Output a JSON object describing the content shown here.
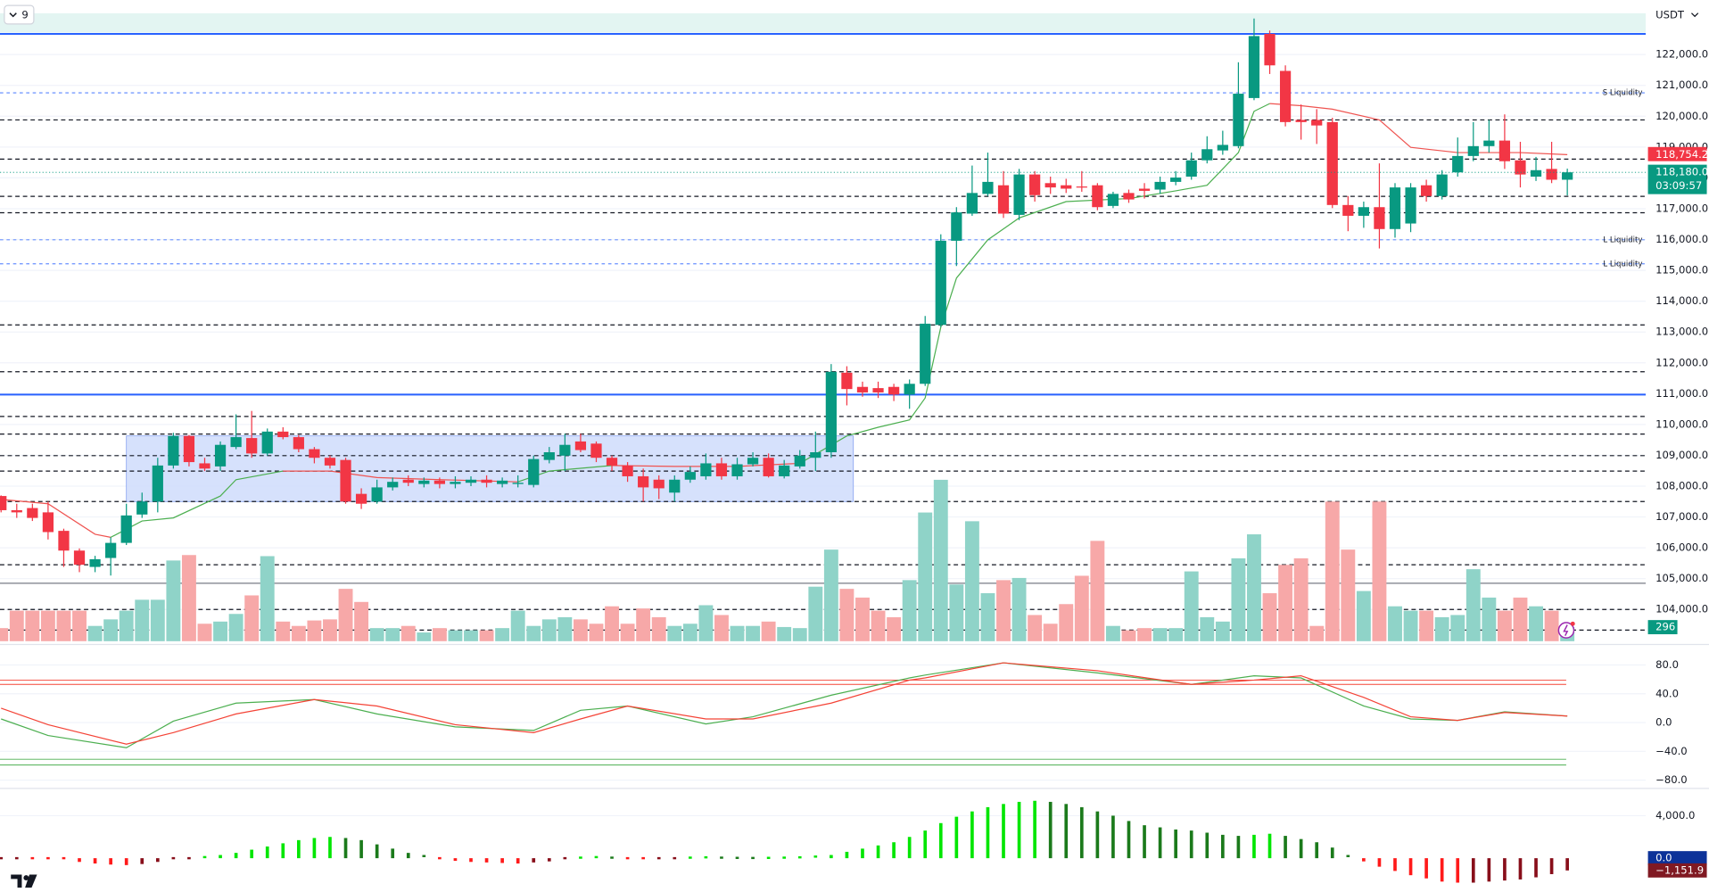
{
  "chart_data": {
    "type": "candlestick",
    "currency": "USDT",
    "interval": "9",
    "grid": true,
    "ylim": [
      102900,
      123770
    ],
    "yticks": [
      {
        "value": 122000,
        "label": "122,000.0"
      },
      {
        "value": 121000,
        "label": "121,000.0"
      },
      {
        "value": 120000,
        "label": "120,000.0"
      },
      {
        "value": 119000,
        "label": "119,000.0"
      },
      {
        "value": 118000,
        "label": "118,000.0"
      },
      {
        "value": 117000,
        "label": "117,000.0"
      },
      {
        "value": 116000,
        "label": "116,000.0"
      },
      {
        "value": 115000,
        "label": "115,000.0"
      },
      {
        "value": 114000,
        "label": "114,000.0"
      },
      {
        "value": 113000,
        "label": "113,000.0"
      },
      {
        "value": 112000,
        "label": "112,000.0"
      },
      {
        "value": 111000,
        "label": "111,000.0"
      },
      {
        "value": 110000,
        "label": "110,000.0"
      },
      {
        "value": 109000,
        "label": "109,000.0"
      },
      {
        "value": 108000,
        "label": "108,000.0"
      },
      {
        "value": 107000,
        "label": "107,000.0"
      },
      {
        "value": 106000,
        "label": "106,000.0"
      },
      {
        "value": 105000,
        "label": "105,000.0"
      },
      {
        "value": 104000,
        "label": "104,000.0"
      }
    ],
    "colors": {
      "up": "#089981",
      "down": "#f23645",
      "up_volume": "#8fd3c8",
      "down_volume": "#f7a8a8"
    },
    "candles": {
      "open": [
        107680,
        107220,
        107290,
        107150,
        106550,
        105910,
        105380,
        105670,
        106160,
        107080,
        107500,
        108670,
        109630,
        108740,
        108640,
        109270,
        109560,
        109060,
        109770,
        109590,
        109200,
        108920,
        108850,
        107750,
        107500,
        107960,
        108210,
        108070,
        108180,
        108070,
        108110,
        108210,
        108070,
        108070,
        108040,
        108850,
        108990,
        109450,
        109380,
        108920,
        108670,
        108320,
        108210,
        107790,
        108210,
        108320,
        108740,
        108320,
        108710,
        108920,
        108320,
        108640,
        108920,
        109100,
        111680,
        111220,
        111180,
        111220,
        110970,
        111320,
        113230,
        115960,
        116840,
        117480,
        117760,
        116800,
        118110,
        117830,
        117760,
        117720,
        117760,
        117090,
        117510,
        117650,
        117620,
        117870,
        118040,
        118570,
        118890,
        119030,
        120590,
        122670,
        121470,
        119880,
        119880,
        119810,
        117120,
        116770,
        117050,
        116340,
        116520,
        117760,
        117410,
        118180,
        118710,
        119030,
        119210,
        118570,
        118040,
        118290,
        117940
      ],
      "high": [
        107700,
        107430,
        107430,
        107500,
        106620,
        105980,
        105740,
        106340,
        107430,
        107790,
        108920,
        109730,
        109660,
        108920,
        109450,
        110330,
        110440,
        109870,
        109910,
        109660,
        109270,
        108990,
        108920,
        107930,
        108210,
        108280,
        108350,
        108280,
        108280,
        108320,
        108320,
        108350,
        108280,
        108350,
        108990,
        109270,
        109700,
        109700,
        109450,
        108990,
        108780,
        108570,
        108350,
        108350,
        108640,
        109060,
        108920,
        108920,
        109100,
        109060,
        108850,
        109170,
        109770,
        111960,
        111890,
        111390,
        111390,
        111320,
        111460,
        113520,
        116170,
        117050,
        118400,
        118820,
        118220,
        118290,
        118220,
        118040,
        117970,
        118220,
        117830,
        117550,
        117620,
        117830,
        118040,
        118220,
        118820,
        119350,
        119530,
        121750,
        123170,
        122780,
        121650,
        120380,
        120230,
        119950,
        117410,
        117230,
        118470,
        117830,
        117830,
        117940,
        118250,
        119310,
        119810,
        119880,
        120060,
        119170,
        118680,
        119170,
        118300
      ],
      "low": [
        107150,
        106970,
        106870,
        106270,
        105380,
        105210,
        105210,
        105100,
        106090,
        106970,
        107150,
        108570,
        108640,
        108490,
        108490,
        109200,
        108920,
        108990,
        109520,
        109100,
        108740,
        108570,
        107430,
        107260,
        107430,
        107860,
        108000,
        107960,
        107930,
        107930,
        108000,
        107960,
        107960,
        107960,
        107960,
        108740,
        108490,
        109100,
        108780,
        108490,
        108140,
        107500,
        107580,
        107500,
        108110,
        108210,
        108210,
        108210,
        108640,
        108280,
        108250,
        108570,
        108490,
        108920,
        110620,
        110900,
        110860,
        110760,
        110510,
        111250,
        113160,
        115140,
        116770,
        117410,
        116700,
        116630,
        117230,
        117480,
        117510,
        117550,
        116950,
        117020,
        117190,
        117330,
        117480,
        117760,
        117940,
        118470,
        118750,
        118960,
        120520,
        121370,
        119670,
        119240,
        119100,
        117020,
        116270,
        116380,
        115710,
        116060,
        116240,
        117230,
        117300,
        118040,
        118540,
        118820,
        118290,
        117690,
        117900,
        117830,
        117430
      ],
      "close": [
        107220,
        107150,
        106970,
        106510,
        105910,
        105450,
        105630,
        106160,
        107050,
        107500,
        108670,
        109630,
        108780,
        108570,
        109340,
        109590,
        109060,
        109770,
        109590,
        109200,
        108920,
        108670,
        107500,
        107430,
        107960,
        108140,
        108110,
        108180,
        108070,
        108140,
        108210,
        108110,
        108180,
        108110,
        108880,
        109100,
        109340,
        109170,
        108920,
        108670,
        108320,
        107960,
        107930,
        108210,
        108460,
        108740,
        108320,
        108710,
        108920,
        108320,
        108670,
        108990,
        109100,
        111710,
        111150,
        111040,
        111040,
        110970,
        111320,
        113270,
        115960,
        116880,
        117510,
        117870,
        116840,
        118110,
        117440,
        117690,
        117650,
        117690,
        117050,
        117480,
        117300,
        117580,
        117870,
        118010,
        118570,
        118930,
        119070,
        120730,
        122600,
        121650,
        119810,
        119810,
        119700,
        117120,
        116770,
        117050,
        116340,
        117690,
        117690,
        117410,
        118110,
        118710,
        119030,
        119210,
        118540,
        118110,
        118250,
        117940,
        118180
      ],
      "volume": [
        276,
        644,
        644,
        644,
        644,
        644,
        322,
        460,
        644,
        874,
        874,
        1702,
        1817,
        368,
        414,
        575,
        966,
        1794,
        414,
        322,
        437,
        460,
        1104,
        828,
        276,
        276,
        322,
        184,
        276,
        230,
        230,
        230,
        276,
        644,
        322,
        460,
        506,
        460,
        368,
        736,
        368,
        690,
        506,
        322,
        368,
        759,
        552,
        322,
        322,
        414,
        299,
        276,
        1150,
        1932,
        1104,
        920,
        644,
        506,
        1288,
        2714,
        3404,
        1196,
        2530,
        1012,
        1288,
        1334,
        552,
        368,
        782,
        1380,
        2116,
        322,
        230,
        276,
        276,
        276,
        1472,
        506,
        414,
        1748,
        2254,
        1012,
        1610,
        1748,
        322,
        2944,
        1932,
        1058,
        2944,
        736,
        644,
        644,
        506,
        552,
        1518,
        920,
        644,
        920,
        736,
        644,
        296
      ]
    },
    "resistance_band": {
      "high": 123340,
      "low": 122710,
      "color": "#e3f5f2"
    },
    "zone": {
      "from_index": 8,
      "to_index": 54,
      "high": 109630,
      "low": 107500,
      "color": "#cfdcfb",
      "border": "#7d9cf0"
    },
    "levels": [
      {
        "value": 122670,
        "color": "#2962ff",
        "style": "solid"
      },
      {
        "value": 110970,
        "color": "#2962ff",
        "style": "solid"
      },
      {
        "value": 104850,
        "color": "#787b86",
        "style": "solid"
      },
      {
        "value": 119880,
        "color": "#131722",
        "style": "dashed"
      },
      {
        "value": 118610,
        "color": "#131722",
        "style": "dashed"
      },
      {
        "value": 117400,
        "color": "#131722",
        "style": "dashed"
      },
      {
        "value": 116870,
        "color": "#131722",
        "style": "dashed"
      },
      {
        "value": 113230,
        "color": "#131722",
        "style": "dashed"
      },
      {
        "value": 111710,
        "color": "#131722",
        "style": "dashed"
      },
      {
        "value": 110260,
        "color": "#131722",
        "style": "dashed"
      },
      {
        "value": 109690,
        "color": "#131722",
        "style": "dashed"
      },
      {
        "value": 108990,
        "color": "#131722",
        "style": "dashed"
      },
      {
        "value": 108490,
        "color": "#131722",
        "style": "dashed"
      },
      {
        "value": 107500,
        "color": "#131722",
        "style": "dashed"
      },
      {
        "value": 105450,
        "color": "#131722",
        "style": "dashed"
      },
      {
        "value": 104000,
        "color": "#131722",
        "style": "dashed"
      },
      {
        "value": 103330,
        "color": "#131722",
        "style": "dashed"
      }
    ],
    "liquidity": [
      {
        "value": 120760,
        "label": "S Liquidity"
      },
      {
        "value": 115990,
        "label": "L Liquidity"
      },
      {
        "value": 115210,
        "label": "L Liquidity"
      }
    ],
    "liquidity_color": "#2962ff",
    "ma": [
      {
        "color": "#ef5350",
        "x": [
          0,
          3,
          6,
          7
        ],
        "values": [
          107570,
          107430,
          106440,
          106340
        ]
      },
      {
        "color": "#4caf50",
        "x": [
          7,
          9,
          11,
          14,
          15,
          18
        ],
        "values": [
          106340,
          106870,
          106970,
          107680,
          108210,
          108490
        ]
      },
      {
        "color": "#ef5350",
        "x": [
          18,
          21,
          24,
          28,
          33
        ],
        "values": [
          108490,
          108490,
          108280,
          108210,
          108140
        ]
      },
      {
        "color": "#4caf50",
        "x": [
          33,
          35,
          39
        ],
        "values": [
          108140,
          108490,
          108670
        ]
      },
      {
        "color": "#ef5350",
        "x": [
          39,
          43,
          47,
          51
        ],
        "values": [
          108670,
          108640,
          108640,
          108740
        ]
      },
      {
        "color": "#4caf50",
        "x": [
          51,
          54,
          56,
          58,
          59,
          60,
          61,
          63,
          65,
          68,
          72,
          75,
          77,
          79,
          80,
          81
        ],
        "values": [
          108740,
          109630,
          109910,
          110150,
          110860,
          113160,
          114750,
          115990,
          116700,
          117230,
          117330,
          117580,
          117760,
          118820,
          120160,
          120410
        ]
      },
      {
        "color": "#ef5350",
        "x": [
          81,
          83,
          85,
          88,
          90,
          93,
          97,
          100
        ],
        "values": [
          120410,
          120340,
          120230,
          119880,
          118990,
          118820,
          118820,
          118754.2
        ]
      }
    ],
    "ma_label": {
      "value": 118754.2,
      "label": "118,754.2",
      "color": "#f23645"
    },
    "last_price": {
      "value": 118180,
      "label": "118,180.0",
      "countdown": "03:09:57",
      "color": "#089981"
    },
    "oscillator": {
      "ylim": [
        -90,
        107
      ],
      "yticks": [
        {
          "value": 80,
          "label": "80.0"
        },
        {
          "value": 40,
          "label": "40.0"
        },
        {
          "value": 0,
          "label": "0.0"
        },
        {
          "value": -40,
          "label": "−40.0"
        },
        {
          "value": -80,
          "label": "−80.0"
        }
      ],
      "levels": [
        {
          "value": 59,
          "color": "#f44336"
        },
        {
          "value": 53,
          "color": "#f44336"
        },
        {
          "value": -51,
          "color": "#4caf50"
        },
        {
          "value": -59,
          "color": "#4caf50"
        }
      ],
      "x": [
        0,
        3,
        8,
        11,
        15,
        20,
        24,
        29,
        34,
        37,
        40,
        45,
        48,
        53,
        58,
        59,
        64,
        70,
        76,
        80,
        83,
        87,
        90,
        93,
        96,
        100
      ],
      "series": [
        {
          "color": "#4caf50",
          "values": [
            5,
            -18,
            -35,
            2,
            27,
            32,
            12,
            -6,
            -11,
            17,
            23,
            -2,
            8,
            38,
            62,
            66,
            83,
            69,
            53,
            65,
            62,
            23,
            5,
            3,
            15,
            9
          ]
        },
        {
          "color": "#f44336",
          "values": [
            20,
            -3,
            -30,
            -14,
            12,
            32,
            23,
            -3,
            -14,
            5,
            23,
            5,
            5,
            27,
            59,
            62,
            83,
            72,
            53,
            59,
            65,
            35,
            8,
            3,
            14,
            9
          ]
        }
      ]
    },
    "macd": {
      "ylim": [
        -3180,
        6360
      ],
      "yticks": [
        {
          "value": 4000,
          "label": "4,000.0"
        }
      ],
      "colors": {
        "up_strong": "#00e600",
        "up_weak": "#1b7a1b",
        "down_strong": "#ff1a1a",
        "down_weak": "#880e1a"
      },
      "values": [
        -80,
        -80,
        -100,
        -150,
        -200,
        -350,
        -500,
        -600,
        -650,
        -550,
        -350,
        -200,
        -50,
        100,
        300,
        500,
        800,
        1100,
        1400,
        1700,
        1900,
        2000,
        1900,
        1700,
        1300,
        900,
        500,
        200,
        -100,
        -250,
        -350,
        -400,
        -450,
        -500,
        -400,
        -300,
        -100,
        50,
        100,
        50,
        -50,
        -100,
        -100,
        -50,
        50,
        80,
        50,
        30,
        20,
        30,
        50,
        80,
        150,
        300,
        600,
        900,
        1200,
        1500,
        2000,
        2600,
        3300,
        3900,
        4400,
        4800,
        5100,
        5300,
        5400,
        5300,
        5100,
        4800,
        4400,
        4000,
        3500,
        3100,
        2900,
        2700,
        2600,
        2400,
        2200,
        2100,
        2200,
        2300,
        2100,
        1800,
        1500,
        1000,
        200,
        -300,
        -800,
        -1200,
        -1600,
        -1900,
        -2200,
        -2300,
        -2300,
        -2200,
        -2100,
        -2000,
        -1800,
        -1500,
        -1151.9
      ],
      "markers": [
        {
          "value": 0,
          "label": "0.0",
          "color": "#0c3299"
        },
        {
          "value": -1151.9,
          "label": "−1,151.9",
          "color": "#801922"
        }
      ]
    }
  }
}
